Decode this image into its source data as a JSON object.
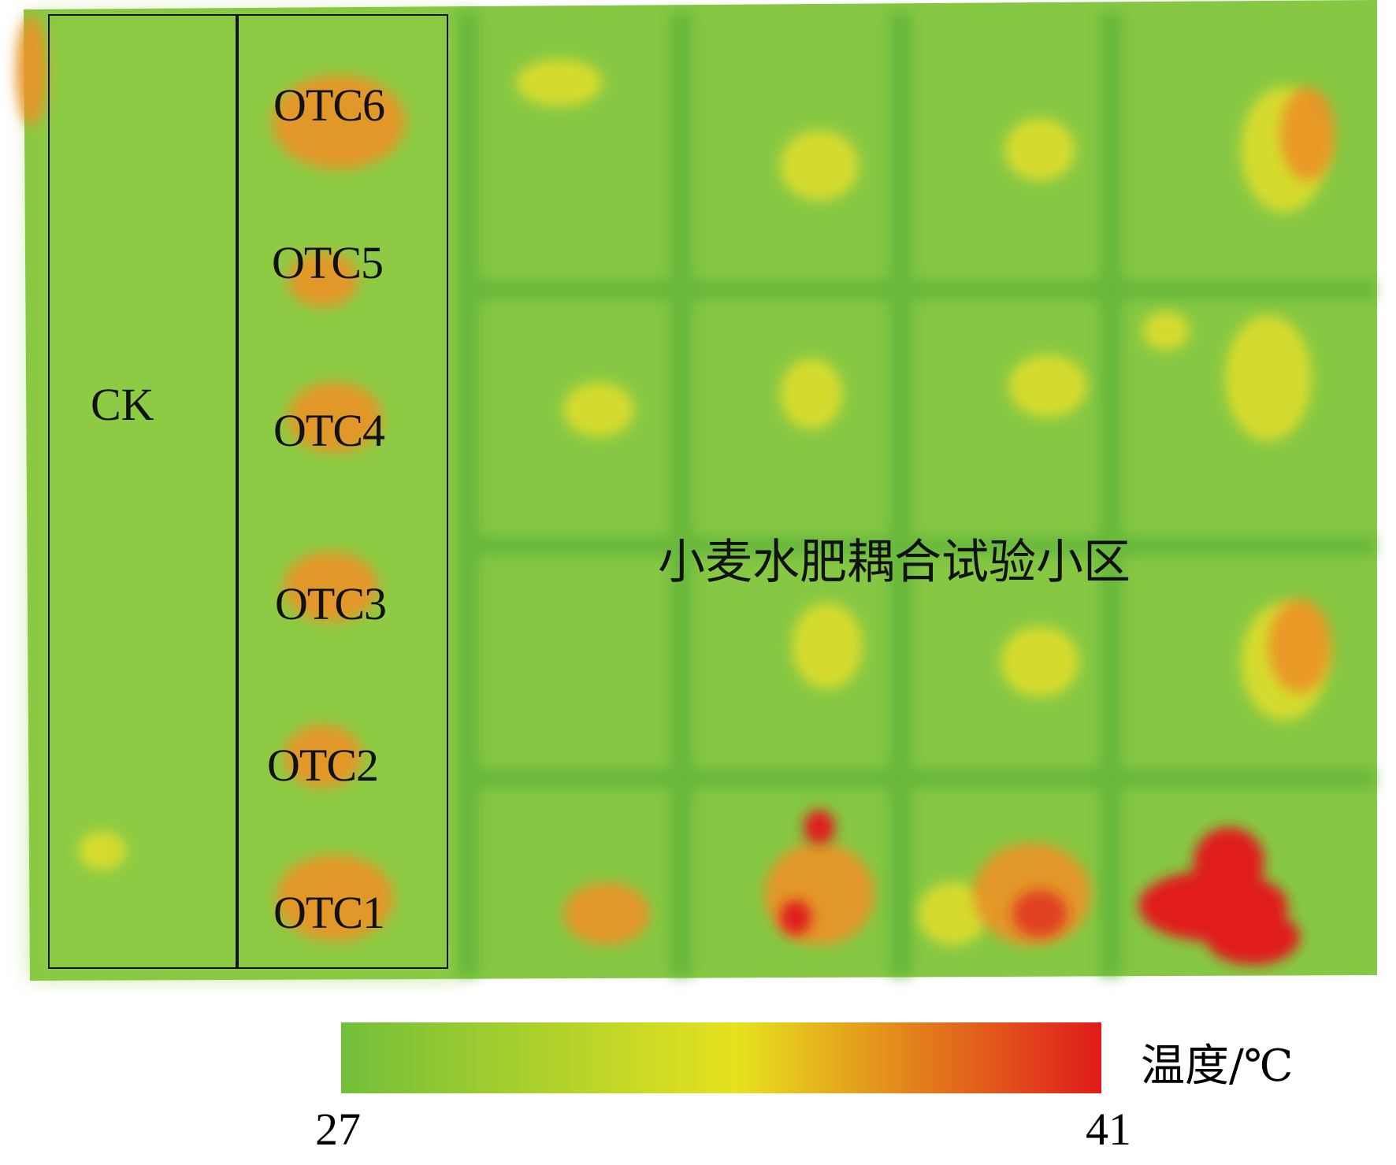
{
  "map": {
    "ck_label": "CK",
    "otc_labels": [
      "OTC6",
      "OTC5",
      "OTC4",
      "OTC3",
      "OTC2",
      "OTC1"
    ],
    "experiment_area_label": "小麦水肥耦合试验小区"
  },
  "legend": {
    "unit_label": "温度/℃",
    "min_label": "27",
    "max_label": "41",
    "min_value": 27,
    "max_value": 41,
    "colors": [
      "#72bf3a",
      "#e6e21e",
      "#e01b1b"
    ]
  }
}
